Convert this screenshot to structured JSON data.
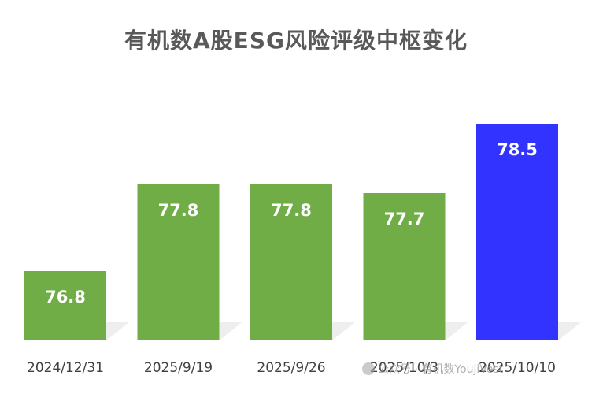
{
  "chart_data": {
    "type": "bar",
    "title": "有机数A股ESG风险评级中枢变化",
    "categories": [
      "2024/12/31",
      "2025/9/19",
      "2025/9/26",
      "2025/10/3",
      "2025/10/10"
    ],
    "values": [
      76.8,
      77.8,
      77.8,
      77.7,
      78.5
    ],
    "data_labels": [
      "76.8",
      "77.8",
      "77.8",
      "77.7",
      "78.5"
    ],
    "bar_colors": [
      "#70ad47",
      "#70ad47",
      "#70ad47",
      "#70ad47",
      "#3333ff"
    ],
    "ylim": [
      76.0,
      78.9
    ],
    "grid": false,
    "legend": "none"
  },
  "watermark": {
    "text": "公众号 · 有机数YoujiVest"
  },
  "colors": {
    "green": "#70ad47",
    "blue": "#3333ff",
    "label_text": "#ffffff",
    "axis_text": "#404040",
    "title_text": "#595959"
  }
}
